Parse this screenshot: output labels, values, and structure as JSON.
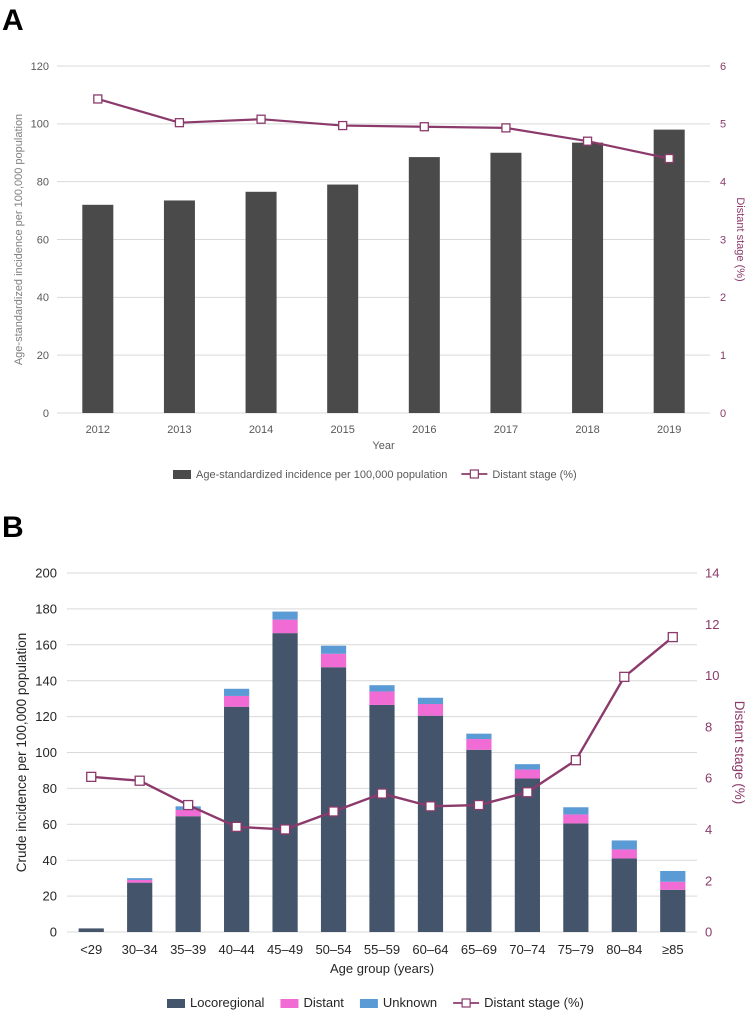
{
  "panels": {
    "a": {
      "letter": "A"
    },
    "b": {
      "letter": "B"
    }
  },
  "colors": {
    "bar_dark": "#4a4a4a",
    "line": "#8b3a6b",
    "locoregional": "#44546a",
    "distant": "#f06bd4",
    "unknown": "#5b9bd5",
    "grid": "#d9d9d9",
    "axis_text_a": "#595959",
    "axis_text_b": "#262626"
  },
  "chart_data": [
    {
      "type": "bar",
      "panel": "A",
      "categories": [
        "2012",
        "2013",
        "2014",
        "2015",
        "2016",
        "2017",
        "2018",
        "2019"
      ],
      "series": [
        {
          "name": "Age-standardized incidence per 100,000 population",
          "type": "bar",
          "axis": "left",
          "values": [
            72,
            73.5,
            76.5,
            79,
            88.5,
            90,
            93.5,
            98
          ]
        },
        {
          "name": "Distant stage (%)",
          "type": "line",
          "axis": "right",
          "values": [
            5.43,
            5.02,
            5.08,
            4.97,
            4.95,
            4.93,
            4.7,
            4.4
          ]
        }
      ],
      "xlabel": "Year",
      "ylabel": "Age-standardized incidence per 100,000 population",
      "y2label": "Distant stage (%)",
      "ylim": [
        0,
        120
      ],
      "y2lim": [
        0,
        6
      ],
      "yticks": [
        "0",
        "20",
        "40",
        "60",
        "80",
        "100",
        "120"
      ],
      "y2ticks": [
        "0",
        "1",
        "2",
        "3",
        "4",
        "5",
        "6"
      ],
      "grid": true,
      "legend_position": "bottom"
    },
    {
      "type": "bar",
      "stacked": true,
      "panel": "B",
      "categories": [
        "<29",
        "30–34",
        "35–39",
        "40–44",
        "45–49",
        "50–54",
        "55–59",
        "60–64",
        "65–69",
        "70–74",
        "75–79",
        "80–84",
        "≥85"
      ],
      "series": [
        {
          "name": "Locoregional",
          "type": "bar",
          "axis": "left",
          "values": [
            2,
            27.5,
            64.5,
            125.5,
            166.5,
            147.5,
            126.5,
            120.5,
            101.5,
            85.5,
            60.5,
            41,
            23.5
          ]
        },
        {
          "name": "Distant",
          "type": "bar",
          "axis": "left",
          "values": [
            0,
            1.5,
            3.5,
            6,
            7.5,
            7.5,
            7.5,
            6.5,
            6,
            5,
            5,
            5,
            4.5
          ]
        },
        {
          "name": "Unknown",
          "type": "bar",
          "axis": "left",
          "values": [
            0,
            1,
            2,
            4,
            4.5,
            4.5,
            3.5,
            3.5,
            3,
            3,
            4,
            5,
            6
          ]
        },
        {
          "name": "Distant stage (%)",
          "type": "line",
          "axis": "right",
          "values": [
            6.05,
            5.9,
            4.95,
            4.1,
            4.0,
            4.7,
            5.4,
            4.9,
            4.95,
            5.45,
            6.7,
            9.95,
            11.5
          ]
        }
      ],
      "xlabel": "Age group (years)",
      "ylabel": "Crude incidence per 100,000 population",
      "y2label": "Distant stage (%)",
      "ylim": [
        0,
        200
      ],
      "y2lim": [
        0,
        14
      ],
      "yticks": [
        "0",
        "20",
        "40",
        "60",
        "80",
        "100",
        "120",
        "140",
        "160",
        "180",
        "200"
      ],
      "y2ticks": [
        "0",
        "2",
        "4",
        "6",
        "8",
        "10",
        "12",
        "14"
      ],
      "grid": true,
      "legend_position": "bottom"
    }
  ]
}
